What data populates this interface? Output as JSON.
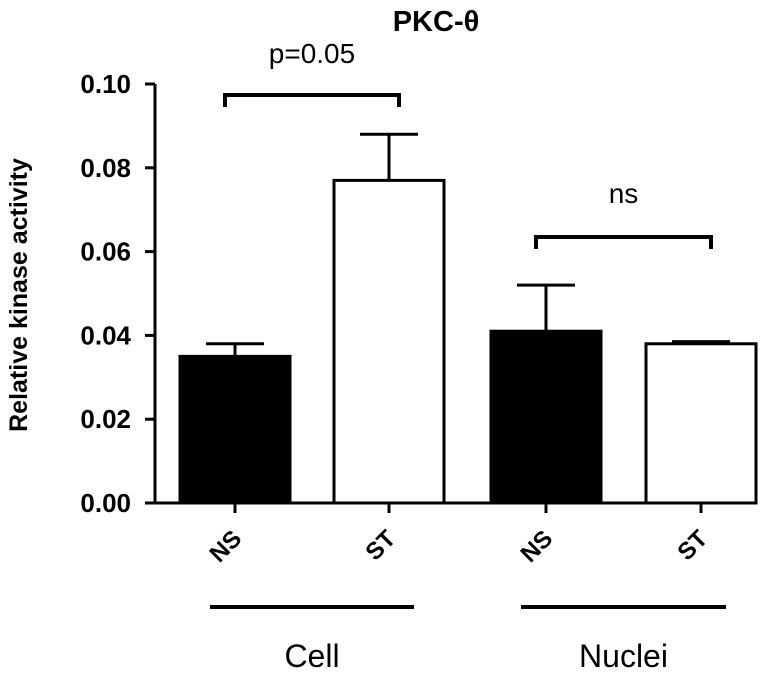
{
  "chart_data": {
    "type": "bar",
    "title": "PKC-θ",
    "ylabel": "Relative kinase activity",
    "xlabel": "",
    "ylim": [
      0,
      0.1
    ],
    "yticks": [
      "0.00",
      "0.02",
      "0.04",
      "0.06",
      "0.08",
      "0.10"
    ],
    "categories": [
      "NS",
      "ST",
      "NS",
      "ST"
    ],
    "groups": [
      {
        "label": "Cell",
        "categories": [
          0,
          1
        ]
      },
      {
        "label": "Nuclei",
        "categories": [
          2,
          3
        ]
      }
    ],
    "values": [
      0.035,
      0.077,
      0.041,
      0.038
    ],
    "errors": [
      0.003,
      0.011,
      0.011,
      0.0005
    ],
    "fills": [
      "black",
      "white",
      "black",
      "white"
    ],
    "annotations": [
      {
        "label": "p=0.05",
        "from": 0,
        "to": 1
      },
      {
        "label": "ns",
        "from": 2,
        "to": 3
      }
    ],
    "grid": false,
    "legend": "none"
  }
}
